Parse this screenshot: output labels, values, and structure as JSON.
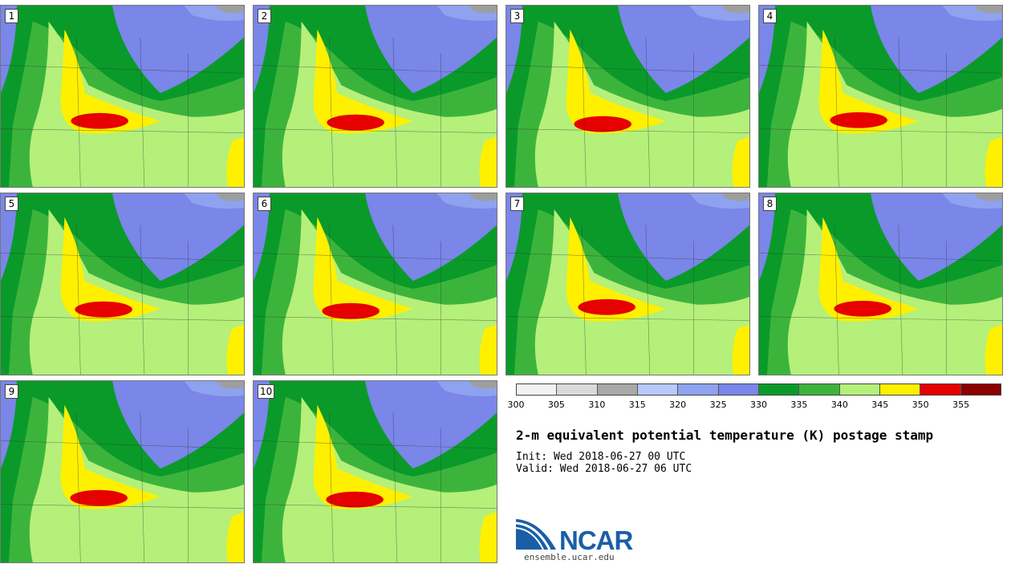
{
  "figure": {
    "title": "2-m equivalent potential temperature (K) postage stamp",
    "init": "Init: Wed 2018-06-27 00 UTC",
    "valid": "Valid: Wed 2018-06-27 06 UTC",
    "logo_text": "NCAR",
    "site": "ensemble.ucar.edu"
  },
  "members": [
    "1",
    "2",
    "3",
    "4",
    "5",
    "6",
    "7",
    "8",
    "9",
    "10"
  ],
  "colorbar": {
    "ticks": [
      "300",
      "305",
      "310",
      "315",
      "320",
      "325",
      "330",
      "335",
      "340",
      "345",
      "350",
      "355"
    ],
    "colors": [
      "#f2f2f2",
      "#dadada",
      "#a8a8a8",
      "#b8c8fa",
      "#8ea2f0",
      "#7a86e8",
      "#0a9a2a",
      "#3cb43c",
      "#b4f07a",
      "#fff000",
      "#e60000",
      "#8c0000"
    ]
  },
  "palette": {
    "ocean_grey": "#9e9e9e",
    "dark_green": "#0a9a2a",
    "mid_green": "#3cb43c",
    "light_green": "#b4f07a",
    "yellow": "#fff000",
    "red": "#e60000",
    "blue": "#7a86e8",
    "light_blue": "#8ea2f0",
    "logo_blue": "#1a5ea8"
  }
}
